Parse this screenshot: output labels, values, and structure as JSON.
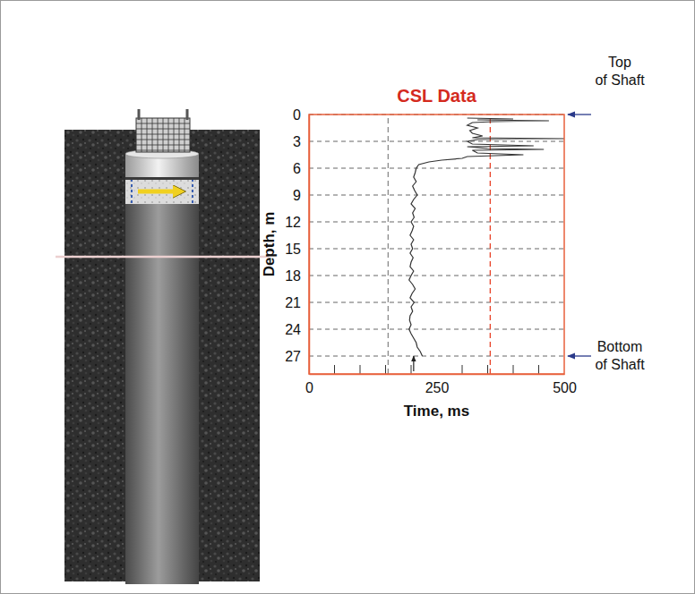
{
  "chart_data": {
    "type": "line",
    "title": "CSL Data",
    "x_label": "Time, ms",
    "y_label": "Depth, m",
    "xlim": [
      0,
      500
    ],
    "xticks": [
      0,
      250,
      500
    ],
    "x_minor_ticks": [
      50,
      100,
      150,
      200,
      300,
      350,
      400,
      450
    ],
    "ylim": [
      29,
      0
    ],
    "yticks": [
      0,
      3,
      6,
      9,
      12,
      15,
      18,
      21,
      24,
      27
    ],
    "grid": true,
    "color": "#333333",
    "line_style": "solid",
    "x": [
      310,
      400,
      330,
      470,
      360,
      320,
      310,
      330,
      315,
      320,
      340,
      320,
      500,
      330,
      310,
      320,
      440,
      310,
      350,
      460,
      320,
      330,
      420,
      310,
      300,
      260,
      235,
      215,
      210,
      208,
      205,
      210,
      203,
      207,
      212,
      205,
      200,
      208,
      203,
      206,
      200,
      205,
      202,
      198,
      205,
      200,
      203,
      198,
      204,
      200,
      198,
      205,
      200,
      196,
      203,
      208,
      202,
      198,
      206,
      200,
      203,
      198,
      197,
      200,
      196,
      200,
      205,
      210,
      212,
      218,
      222
    ],
    "y": [
      0.4,
      0.5,
      0.6,
      0.7,
      0.8,
      0.9,
      1.2,
      1.5,
      1.8,
      2.1,
      2.4,
      2.6,
      2.7,
      2.8,
      3.0,
      3.3,
      3.5,
      3.6,
      3.8,
      3.9,
      4.0,
      4.3,
      4.5,
      4.7,
      4.9,
      5.1,
      5.3,
      5.6,
      6.0,
      6.5,
      7.0,
      7.5,
      8.0,
      8.5,
      9.0,
      9.5,
      10.0,
      10.5,
      11.0,
      11.5,
      12.0,
      12.5,
      13.0,
      13.5,
      14.0,
      14.5,
      15.0,
      15.5,
      16.0,
      16.5,
      17.0,
      17.5,
      18.0,
      18.5,
      19.0,
      19.5,
      20.0,
      20.5,
      21.0,
      21.5,
      22.0,
      22.5,
      23.0,
      23.5,
      24.0,
      24.5,
      25.0,
      25.5,
      26.0,
      26.5,
      27.0
    ],
    "reference_lines": [
      {
        "value": 155,
        "color": "#8a8a8a"
      },
      {
        "value": 355,
        "color": "#e8442a"
      }
    ],
    "annotations": [
      {
        "text": "Top of Shaft",
        "y": 0
      },
      {
        "text": "Bottom of Shaft",
        "y": 27
      }
    ],
    "arrows": [
      {
        "x": 205
      }
    ]
  }
}
